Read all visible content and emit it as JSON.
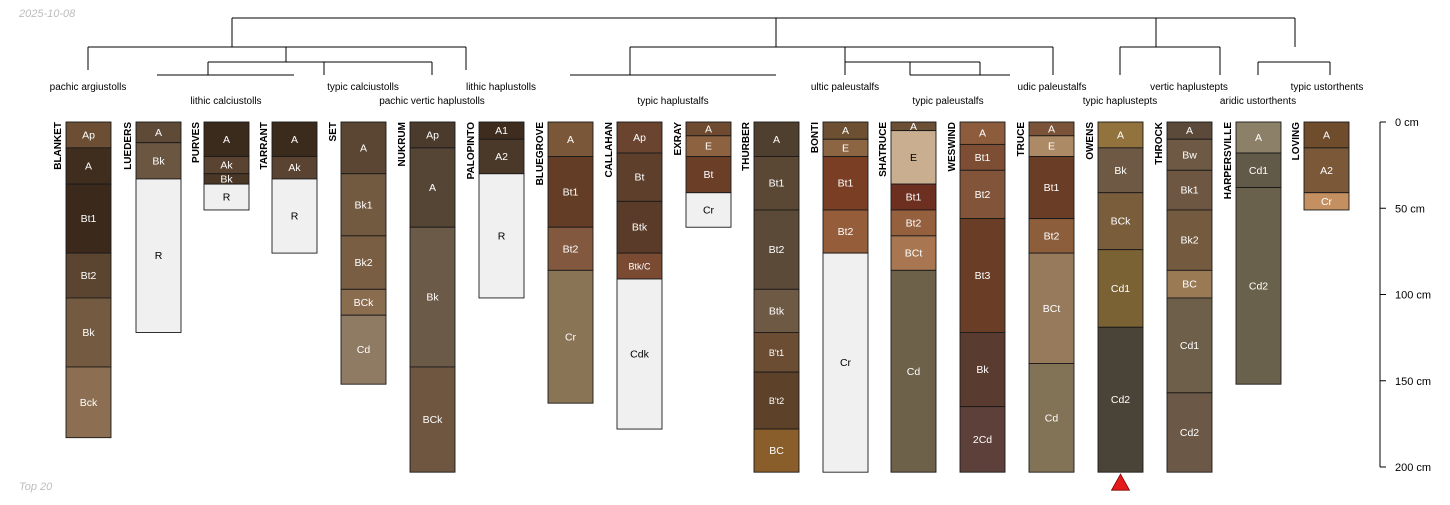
{
  "date_label": "2025-10-08",
  "footer_label": "Top 20",
  "depth_axis": {
    "unit": "cm",
    "ticks": [
      {
        "value": 0,
        "label": "0 cm"
      },
      {
        "value": 50,
        "label": "50 cm"
      },
      {
        "value": 100,
        "label": "100 cm"
      },
      {
        "value": 150,
        "label": "150 cm"
      },
      {
        "value": 200,
        "label": "200 cm"
      }
    ]
  },
  "dendrogram_labels": [
    {
      "text": "pachic argiustolls",
      "group": 1
    },
    {
      "text": "lithic calciustolls",
      "group": 2
    },
    {
      "text": "typic calciustolls",
      "group": 3
    },
    {
      "text": "pachic vertic haplustolls",
      "group": 4
    },
    {
      "text": "lithic haplustolls",
      "group": 5
    },
    {
      "text": "typic haplustalfs",
      "group": 6
    },
    {
      "text": "ultic paleustalfs",
      "group": 7
    },
    {
      "text": "typic paleustalfs",
      "group": 8
    },
    {
      "text": "udic paleustalfs",
      "group": 9
    },
    {
      "text": "typic haplustepts",
      "group": 10
    },
    {
      "text": "vertic haplustepts",
      "group": 11
    },
    {
      "text": "aridic ustorthents",
      "group": 12
    },
    {
      "text": "typic ustorthents",
      "group": 13
    }
  ],
  "profiles": [
    {
      "name": "BLANKET",
      "horizons": [
        {
          "name": "Ap",
          "top": 0,
          "bottom": 15,
          "color": "#6b4e33"
        },
        {
          "name": "A",
          "top": 15,
          "bottom": 36,
          "color": "#3f2e1e"
        },
        {
          "name": "Bt1",
          "top": 36,
          "bottom": 76,
          "color": "#3b2a1c"
        },
        {
          "name": "Bt2",
          "top": 76,
          "bottom": 102,
          "color": "#5c4530"
        },
        {
          "name": "Bk",
          "top": 102,
          "bottom": 142,
          "color": "#735a40"
        },
        {
          "name": "Bck",
          "top": 142,
          "bottom": 183,
          "color": "#8c6f52"
        }
      ]
    },
    {
      "name": "LUEDERS",
      "horizons": [
        {
          "name": "A",
          "top": 0,
          "bottom": 12,
          "color": "#5e4a37"
        },
        {
          "name": "Bk",
          "top": 12,
          "bottom": 33,
          "color": "#6b5642"
        },
        {
          "name": "R",
          "top": 33,
          "bottom": 122,
          "color": "#f0f0f0"
        }
      ]
    },
    {
      "name": "PURVES",
      "horizons": [
        {
          "name": "A",
          "top": 0,
          "bottom": 20,
          "color": "#3b2b1d"
        },
        {
          "name": "Ak",
          "top": 20,
          "bottom": 30,
          "color": "#5a4330"
        },
        {
          "name": "Bk",
          "top": 30,
          "bottom": 36,
          "color": "#4a3726"
        },
        {
          "name": "R",
          "top": 36,
          "bottom": 51,
          "color": "#f0f0f0"
        }
      ]
    },
    {
      "name": "TARRANT",
      "horizons": [
        {
          "name": "A",
          "top": 0,
          "bottom": 20,
          "color": "#3b2b1d"
        },
        {
          "name": "Ak",
          "top": 20,
          "bottom": 33,
          "color": "#5a4330"
        },
        {
          "name": "R",
          "top": 33,
          "bottom": 76,
          "color": "#f0f0f0"
        }
      ]
    },
    {
      "name": "SET",
      "horizons": [
        {
          "name": "A",
          "top": 0,
          "bottom": 30,
          "color": "#5a4633"
        },
        {
          "name": "Bk1",
          "top": 30,
          "bottom": 66,
          "color": "#725a41"
        },
        {
          "name": "Bk2",
          "top": 66,
          "bottom": 97,
          "color": "#7a5e43"
        },
        {
          "name": "BCk",
          "top": 97,
          "bottom": 112,
          "color": "#8a6c4e"
        },
        {
          "name": "Cd",
          "top": 112,
          "bottom": 152,
          "color": "#8f7a64"
        }
      ]
    },
    {
      "name": "NUKRUM",
      "horizons": [
        {
          "name": "Ap",
          "top": 0,
          "bottom": 15,
          "color": "#4b3b2c"
        },
        {
          "name": "A",
          "top": 15,
          "bottom": 61,
          "color": "#544535"
        },
        {
          "name": "Bk",
          "top": 61,
          "bottom": 142,
          "color": "#6c5a48"
        },
        {
          "name": "BCk",
          "top": 142,
          "bottom": 203,
          "color": "#6e5640"
        }
      ]
    },
    {
      "name": "PALOPINTO",
      "horizons": [
        {
          "name": "A1",
          "top": 0,
          "bottom": 10,
          "color": "#3e2d1f"
        },
        {
          "name": "A2",
          "top": 10,
          "bottom": 30,
          "color": "#4a3828"
        },
        {
          "name": "R",
          "top": 30,
          "bottom": 102,
          "color": "#f0f0f0"
        }
      ]
    },
    {
      "name": "BLUEGROVE",
      "horizons": [
        {
          "name": "A",
          "top": 0,
          "bottom": 20,
          "color": "#7a5738"
        },
        {
          "name": "Bt1",
          "top": 20,
          "bottom": 61,
          "color": "#633d25"
        },
        {
          "name": "Bt2",
          "top": 61,
          "bottom": 86,
          "color": "#82583e"
        },
        {
          "name": "Cr",
          "top": 86,
          "bottom": 163,
          "color": "#8a7456"
        }
      ]
    },
    {
      "name": "CALLAHAN",
      "horizons": [
        {
          "name": "Ap",
          "top": 0,
          "bottom": 18,
          "color": "#6b4430"
        },
        {
          "name": "Bt",
          "top": 18,
          "bottom": 46,
          "color": "#5e3f2c"
        },
        {
          "name": "Btk",
          "top": 46,
          "bottom": 76,
          "color": "#5a3b29"
        },
        {
          "name": "Btk/C",
          "top": 76,
          "bottom": 91,
          "color": "#7a4a32"
        },
        {
          "name": "Cdk",
          "top": 91,
          "bottom": 178,
          "color": "#f0f0f0"
        }
      ]
    },
    {
      "name": "EXRAY",
      "horizons": [
        {
          "name": "A",
          "top": 0,
          "bottom": 8,
          "color": "#6e4a30"
        },
        {
          "name": "E",
          "top": 8,
          "bottom": 20,
          "color": "#8c6240"
        },
        {
          "name": "Bt",
          "top": 20,
          "bottom": 41,
          "color": "#6b3f27"
        },
        {
          "name": "Cr",
          "top": 41,
          "bottom": 61,
          "color": "#f0f0f0"
        }
      ]
    },
    {
      "name": "THURBER",
      "horizons": [
        {
          "name": "A",
          "top": 0,
          "bottom": 20,
          "color": "#4f3f2f"
        },
        {
          "name": "Bt1",
          "top": 20,
          "bottom": 51,
          "color": "#5a4835"
        },
        {
          "name": "Bt2",
          "top": 51,
          "bottom": 97,
          "color": "#5b4a37"
        },
        {
          "name": "Btk",
          "top": 97,
          "bottom": 122,
          "color": "#6e5a44"
        },
        {
          "name": "B't1",
          "top": 122,
          "bottom": 145,
          "color": "#6a4d32"
        },
        {
          "name": "B't2",
          "top": 145,
          "bottom": 178,
          "color": "#5d4129"
        },
        {
          "name": "BC",
          "top": 178,
          "bottom": 203,
          "color": "#8a5e2a"
        }
      ]
    },
    {
      "name": "BONTI",
      "horizons": [
        {
          "name": "A",
          "top": 0,
          "bottom": 10,
          "color": "#6d5032"
        },
        {
          "name": "E",
          "top": 10,
          "bottom": 20,
          "color": "#8c6543"
        },
        {
          "name": "Bt1",
          "top": 20,
          "bottom": 51,
          "color": "#7a3e25"
        },
        {
          "name": "Bt2",
          "top": 51,
          "bottom": 76,
          "color": "#955d3a"
        },
        {
          "name": "Cr",
          "top": 76,
          "bottom": 203,
          "color": "#f0f0f0"
        }
      ]
    },
    {
      "name": "SHATRUCE",
      "horizons": [
        {
          "name": "A",
          "top": 0,
          "bottom": 5,
          "color": "#6b5035"
        },
        {
          "name": "E",
          "top": 5,
          "bottom": 36,
          "color": "#c9ae8f"
        },
        {
          "name": "Bt1",
          "top": 36,
          "bottom": 51,
          "color": "#6d2f1f"
        },
        {
          "name": "Bt2",
          "top": 51,
          "bottom": 66,
          "color": "#95603e"
        },
        {
          "name": "BCt",
          "top": 66,
          "bottom": 86,
          "color": "#a87650"
        },
        {
          "name": "Cd",
          "top": 86,
          "bottom": 203,
          "color": "#6e6149"
        }
      ]
    },
    {
      "name": "WESWIND",
      "horizons": [
        {
          "name": "A",
          "top": 0,
          "bottom": 13,
          "color": "#8c5c3c"
        },
        {
          "name": "Bt1",
          "top": 13,
          "bottom": 28,
          "color": "#7e4e34"
        },
        {
          "name": "Bt2",
          "top": 28,
          "bottom": 56,
          "color": "#82543a"
        },
        {
          "name": "Bt3",
          "top": 56,
          "bottom": 122,
          "color": "#6a3e26"
        },
        {
          "name": "Bk",
          "top": 122,
          "bottom": 165,
          "color": "#5a3b30"
        },
        {
          "name": "2Cd",
          "top": 165,
          "bottom": 203,
          "color": "#5e403a"
        }
      ]
    },
    {
      "name": "TRUCE",
      "horizons": [
        {
          "name": "A",
          "top": 0,
          "bottom": 8,
          "color": "#7a5338"
        },
        {
          "name": "E",
          "top": 8,
          "bottom": 20,
          "color": "#ad8a66"
        },
        {
          "name": "Bt1",
          "top": 20,
          "bottom": 56,
          "color": "#6a3d26"
        },
        {
          "name": "Bt2",
          "top": 56,
          "bottom": 76,
          "color": "#8d5e3c"
        },
        {
          "name": "BCt",
          "top": 76,
          "bottom": 140,
          "color": "#977a5b"
        },
        {
          "name": "Cd",
          "top": 140,
          "bottom": 203,
          "color": "#827356"
        }
      ]
    },
    {
      "name": "OWENS",
      "horizons": [
        {
          "name": "A",
          "top": 0,
          "bottom": 15,
          "color": "#92723d"
        },
        {
          "name": "Bk",
          "top": 15,
          "bottom": 41,
          "color": "#6e5a44"
        },
        {
          "name": "BCk",
          "top": 41,
          "bottom": 74,
          "color": "#7a5e3c"
        },
        {
          "name": "Cd1",
          "top": 74,
          "bottom": 119,
          "color": "#7a6235"
        },
        {
          "name": "Cd2",
          "top": 119,
          "bottom": 203,
          "color": "#4a4438"
        }
      ]
    },
    {
      "name": "THROCK",
      "horizons": [
        {
          "name": "A",
          "top": 0,
          "bottom": 10,
          "color": "#5b4a3a"
        },
        {
          "name": "Bw",
          "top": 10,
          "bottom": 28,
          "color": "#6e5a44"
        },
        {
          "name": "Bk1",
          "top": 28,
          "bottom": 51,
          "color": "#6e5742"
        },
        {
          "name": "Bk2",
          "top": 51,
          "bottom": 86,
          "color": "#745a3e"
        },
        {
          "name": "BC",
          "top": 86,
          "bottom": 102,
          "color": "#9a7a55"
        },
        {
          "name": "Cd1",
          "top": 102,
          "bottom": 157,
          "color": "#6e5f4a"
        },
        {
          "name": "Cd2",
          "top": 157,
          "bottom": 203,
          "color": "#6b5847"
        }
      ]
    },
    {
      "name": "HARPERSVILLE",
      "horizons": [
        {
          "name": "A",
          "top": 0,
          "bottom": 18,
          "color": "#8c8068"
        },
        {
          "name": "Cd1",
          "top": 18,
          "bottom": 38,
          "color": "#625a48"
        },
        {
          "name": "Cd2",
          "top": 38,
          "bottom": 152,
          "color": "#6a614d"
        }
      ]
    },
    {
      "name": "LOVING",
      "horizons": [
        {
          "name": "A",
          "top": 0,
          "bottom": 15,
          "color": "#6e4c2c"
        },
        {
          "name": "A2",
          "top": 15,
          "bottom": 41,
          "color": "#7a5838"
        },
        {
          "name": "Cr",
          "top": 41,
          "bottom": 51,
          "color": "#c49062"
        }
      ]
    }
  ],
  "marker": {
    "profile": "OWENS",
    "color": "#e41a1c"
  }
}
